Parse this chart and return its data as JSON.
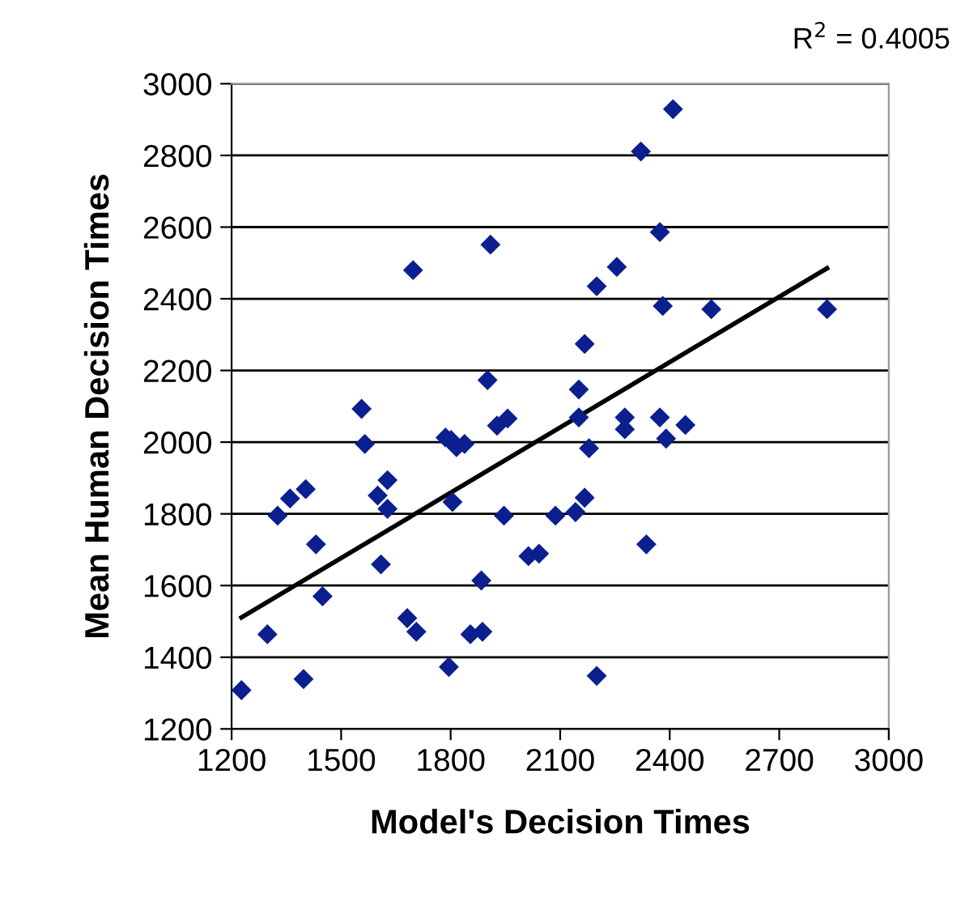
{
  "chart_data": {
    "type": "scatter",
    "xlabel": "Model's Decision Times",
    "ylabel": "Mean Human Decision Times",
    "annotations": [
      "R$^{2}$ = 0.4005"
    ],
    "xlim": [
      1200,
      3000
    ],
    "xticks": [
      1200,
      1500,
      1800,
      2100,
      2400,
      2700,
      3000
    ],
    "ylim": [
      1200,
      3000
    ],
    "yticks": [
      1200,
      1400,
      1600,
      1800,
      2000,
      2200,
      2400,
      2600,
      2800,
      3000
    ],
    "grid": "y",
    "series": [
      {
        "color": "#0c1f8f",
        "marker": "diamond",
        "x": [
          1227,
          1298,
          1326,
          1360,
          1403,
          1397,
          1431,
          1449,
          1556,
          1565,
          1600,
          1627,
          1627,
          1609,
          1681,
          1706,
          1697,
          1786,
          1801,
          1816,
          1838,
          1805,
          1795,
          1854,
          1887,
          1884,
          1901,
          1909,
          1927,
          1956,
          1946,
          2013,
          2042,
          2087,
          2142,
          2167,
          2179,
          2151,
          2151,
          2167,
          2200,
          2200,
          2277,
          2277,
          2255,
          2321,
          2409,
          2373,
          2381,
          2373,
          2390,
          2443,
          2336,
          2514,
          2831
        ],
        "values": [
          1308,
          1464,
          1795,
          1843,
          1869,
          1339,
          1715,
          1570,
          2093,
          1995,
          1851,
          1894,
          1814,
          1659,
          1509,
          1471,
          2480,
          2013,
          2006,
          1986,
          1995,
          1833,
          1373,
          1464,
          1471,
          1614,
          2173,
          2551,
          2046,
          2066,
          1795,
          1682,
          1689,
          1795,
          1805,
          1845,
          1983,
          2069,
          2147,
          2274,
          2435,
          1348,
          2069,
          2036,
          2489,
          2811,
          2929,
          2586,
          2380,
          2069,
          2010,
          2048,
          1715,
          2371,
          2371
        ]
      },
      {
        "type": "line",
        "color": "#000000",
        "line_style": "solid",
        "x": [
          1227,
          2831
        ],
        "values": [
          1511,
          2485
        ]
      }
    ]
  }
}
